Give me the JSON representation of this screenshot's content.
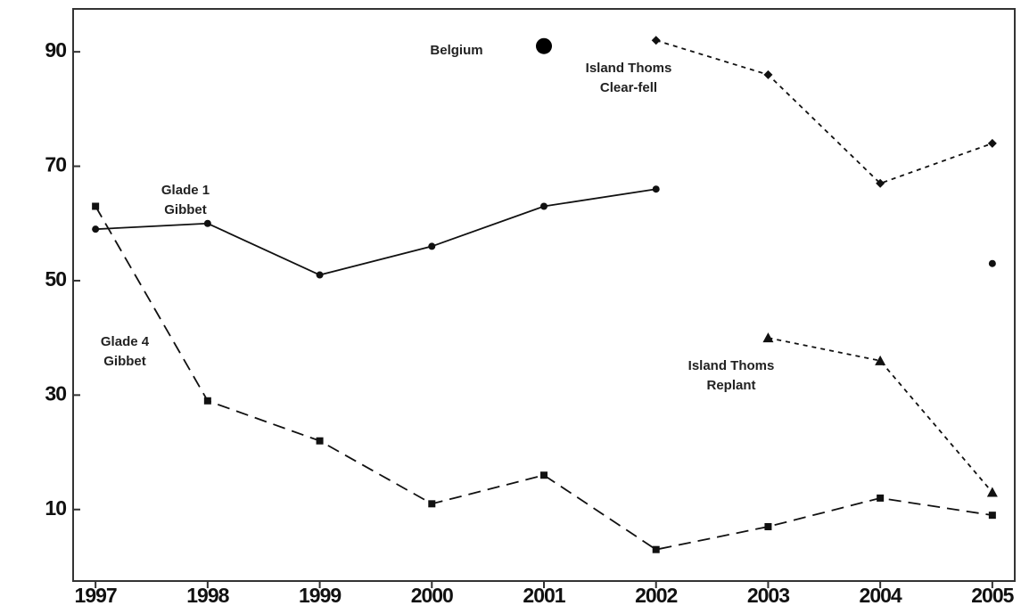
{
  "chart_data": {
    "type": "line",
    "x": [
      1997,
      1998,
      1999,
      2000,
      2001,
      2002,
      2003,
      2004,
      2005
    ],
    "xlim": [
      1996.8,
      2005.2
    ],
    "xticks": [
      1997,
      1998,
      1999,
      2000,
      2001,
      2002,
      2003,
      2004,
      2005
    ],
    "ylim": [
      -2.5,
      97.5
    ],
    "yticks": [
      10,
      30,
      50,
      70,
      90
    ],
    "series": [
      {
        "name": "Glade 1\nGibbet",
        "color": "#111111",
        "marker": "circle",
        "dash": "solid",
        "values": [
          59,
          60,
          51,
          56,
          63,
          66,
          null,
          null,
          53
        ]
      },
      {
        "name": "Glade 4\nGibbet",
        "color": "#111111",
        "marker": "square",
        "dash": "long",
        "values": [
          63,
          29,
          22,
          11,
          16,
          3,
          7,
          12,
          9
        ]
      },
      {
        "name": "Island Thoms\nClear-fell",
        "color": "#111111",
        "marker": "diamond",
        "dash": "short",
        "values": [
          null,
          null,
          null,
          null,
          null,
          92,
          86,
          67,
          74
        ]
      },
      {
        "name": "Island Thoms\nReplant",
        "color": "#111111",
        "marker": "triangle",
        "dash": "short",
        "values": [
          null,
          null,
          null,
          null,
          null,
          null,
          40,
          36,
          13
        ]
      },
      {
        "name": "Belgium",
        "color": "#000000",
        "marker": "big-circle",
        "dash": "solid",
        "values": [
          null,
          null,
          null,
          null,
          91,
          null,
          null,
          null,
          null
        ]
      }
    ]
  }
}
